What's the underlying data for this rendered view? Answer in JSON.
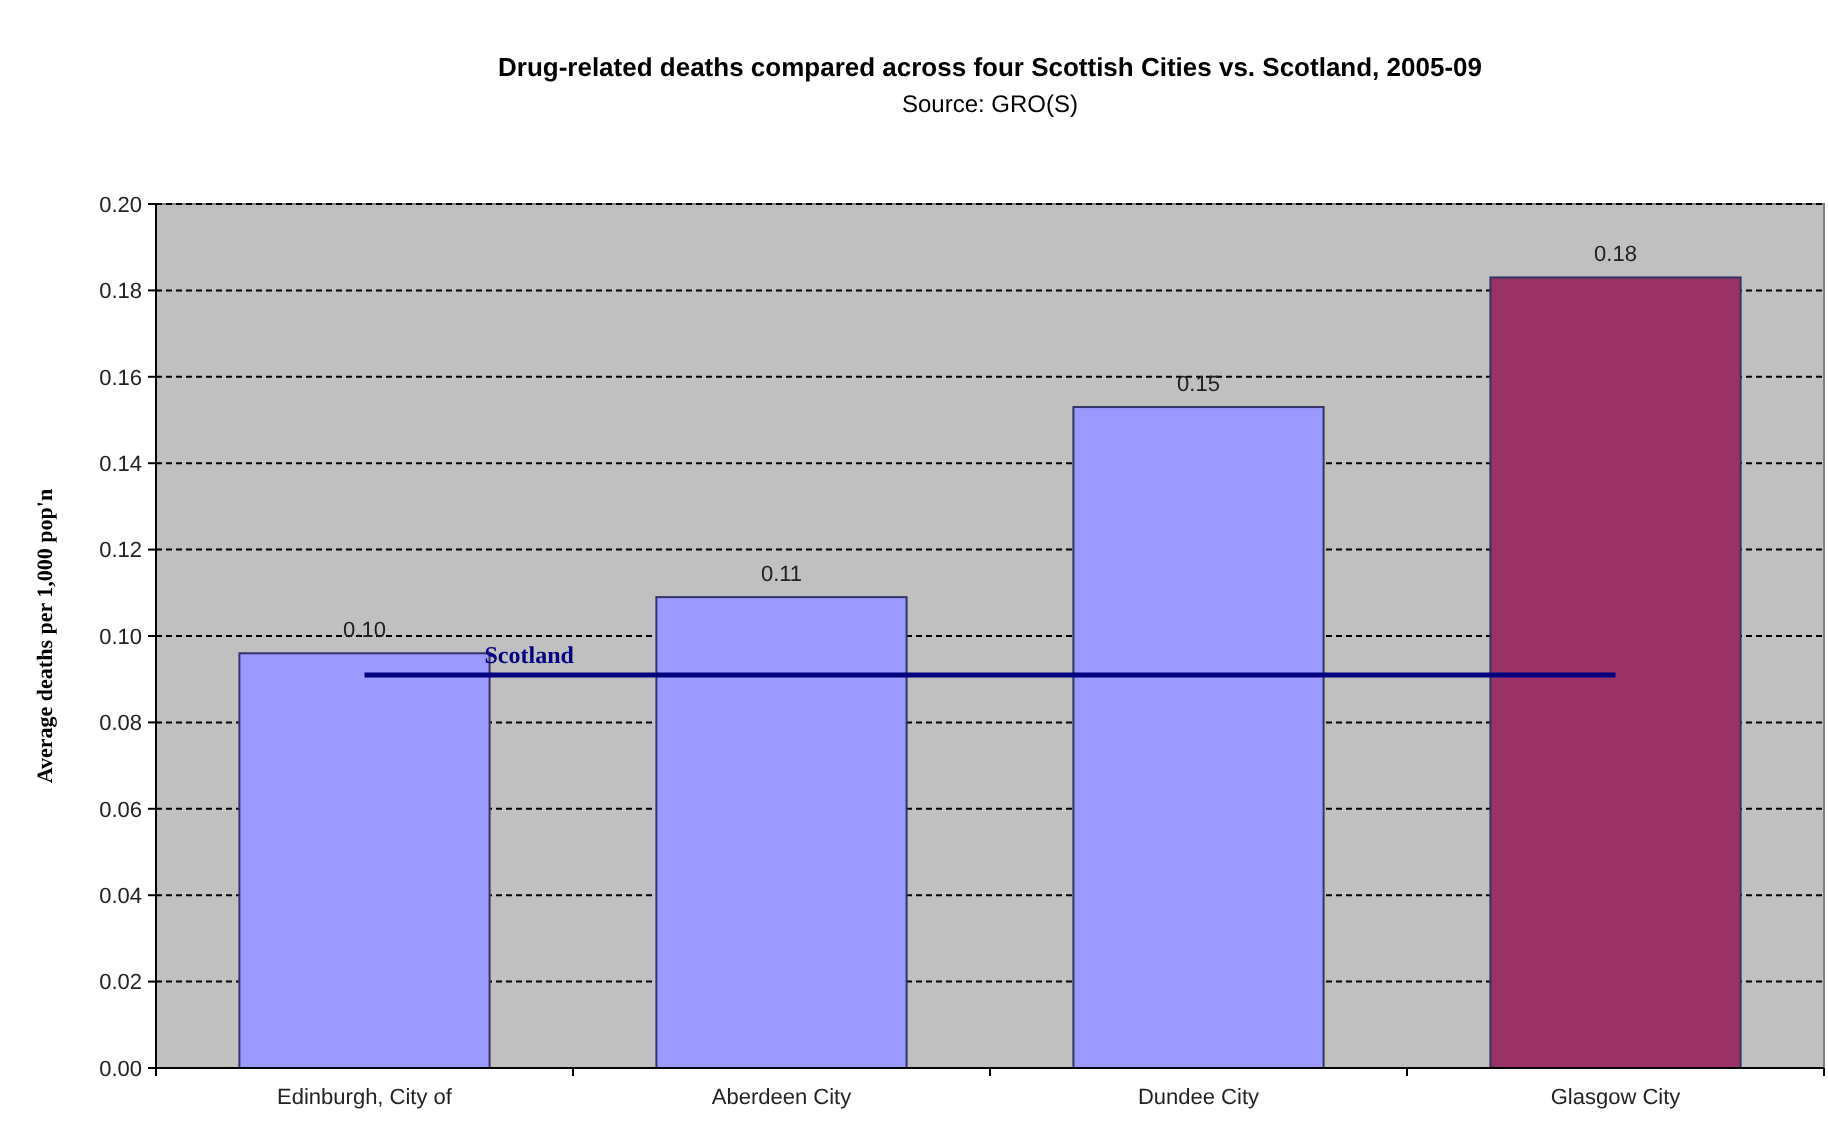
{
  "chart_data": {
    "type": "bar",
    "title": "Drug-related deaths compared across four Scottish Cities vs. Scotland, 2005-09",
    "subtitle": "Source: GRO(S)",
    "ylabel": "Average deaths per 1,000 pop'n",
    "categories": [
      "Edinburgh, City of",
      "Aberdeen City",
      "Dundee City",
      "Glasgow City"
    ],
    "series": [
      {
        "colors": [
          "#9999ff",
          "#9999ff",
          "#9999ff",
          "#993366"
        ],
        "values": [
          0.096,
          0.109,
          0.153,
          0.183
        ],
        "value_labels": [
          "0.10",
          "0.11",
          "0.15",
          "0.18"
        ]
      },
      {
        "type": "line",
        "name": "Scotland",
        "color": "#000080",
        "values": [
          0.091,
          0.091,
          0.091,
          0.091
        ]
      }
    ],
    "ylim": [
      0,
      0.2
    ],
    "yticks": [
      {
        "value": 0,
        "label": "0.00"
      },
      {
        "value": 0.02,
        "label": "0.02"
      },
      {
        "value": 0.04,
        "label": "0.04"
      },
      {
        "value": 0.06,
        "label": "0.06"
      },
      {
        "value": 0.08,
        "label": "0.08"
      },
      {
        "value": 0.1,
        "label": "0.10"
      },
      {
        "value": 0.12,
        "label": "0.12"
      },
      {
        "value": 0.14,
        "label": "0.14"
      },
      {
        "value": 0.16,
        "label": "0.16"
      },
      {
        "value": 0.18,
        "label": "0.18"
      },
      {
        "value": 0.2,
        "label": "0.20"
      }
    ],
    "grid": "y",
    "marker": "none",
    "line_style": "solid"
  }
}
